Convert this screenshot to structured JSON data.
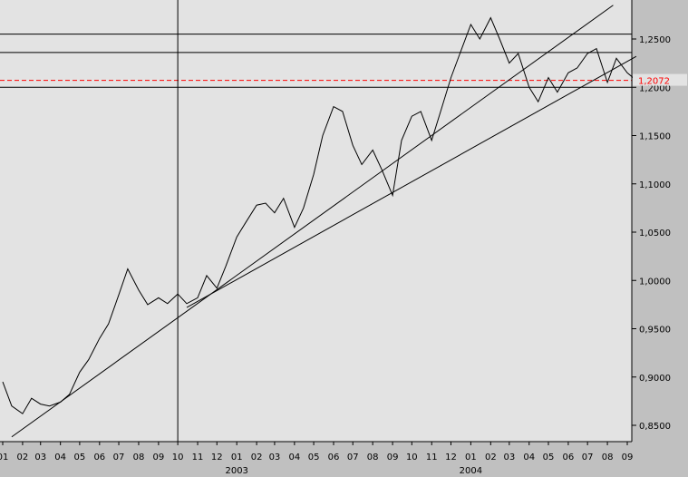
{
  "chart_data": {
    "type": "line",
    "title": "",
    "xlabel": "",
    "ylabel": "",
    "x_range": [
      "2002-01-01",
      "2004-09-15"
    ],
    "ylim": [
      0.835,
      1.285
    ],
    "y_ticks": [
      "0,8500",
      "0,9000",
      "0,9500",
      "1,0000",
      "1,0500",
      "1,1000",
      "1,1500",
      "1,2000",
      "1,2500"
    ],
    "y_tick_values": [
      0.85,
      0.9,
      0.95,
      1.0,
      1.05,
      1.1,
      1.15,
      1.2,
      1.25
    ],
    "x_month_ticks": [
      "01",
      "02",
      "03",
      "04",
      "05",
      "06",
      "07",
      "08",
      "09",
      "10",
      "11",
      "12",
      "01",
      "02",
      "03",
      "04",
      "05",
      "06",
      "07",
      "08",
      "09",
      "10",
      "11",
      "12",
      "01",
      "02",
      "03",
      "04",
      "05",
      "06",
      "07",
      "08",
      "09"
    ],
    "x_month_dates": [
      "2002-01-01",
      "2002-02-01",
      "2002-03-01",
      "2002-04-01",
      "2002-05-01",
      "2002-06-01",
      "2002-07-01",
      "2002-08-01",
      "2002-09-01",
      "2002-10-01",
      "2002-11-01",
      "2002-12-01",
      "2003-01-01",
      "2003-02-01",
      "2003-03-01",
      "2003-04-01",
      "2003-05-01",
      "2003-06-01",
      "2003-07-01",
      "2003-08-01",
      "2003-09-01",
      "2003-10-01",
      "2003-11-01",
      "2003-12-01",
      "2004-01-01",
      "2004-02-01",
      "2004-03-01",
      "2004-04-01",
      "2004-05-01",
      "2004-06-01",
      "2004-07-01",
      "2004-08-01",
      "2004-09-01"
    ],
    "x_year_labels": [
      {
        "label": "02",
        "date": "2002-01-01"
      },
      {
        "label": "2003",
        "date": "2003-01-01"
      },
      {
        "label": "2004",
        "date": "2004-01-01"
      }
    ],
    "series": [
      {
        "x": [
          "2002-01-01",
          "2002-01-15",
          "2002-02-01",
          "2002-02-15",
          "2002-03-01",
          "2002-03-15",
          "2002-04-01",
          "2002-04-15",
          "2002-05-01",
          "2002-05-15",
          "2002-06-01",
          "2002-06-15",
          "2002-07-01",
          "2002-07-15",
          "2002-08-01",
          "2002-08-15",
          "2002-09-01",
          "2002-09-15",
          "2002-10-01",
          "2002-10-15",
          "2002-11-01",
          "2002-11-15",
          "2002-12-01",
          "2002-12-15",
          "2003-01-01",
          "2003-01-15",
          "2003-02-01",
          "2003-02-15",
          "2003-03-01",
          "2003-03-15",
          "2003-04-01",
          "2003-04-15",
          "2003-05-01",
          "2003-05-15",
          "2003-06-01",
          "2003-06-15",
          "2003-07-01",
          "2003-07-15",
          "2003-08-01",
          "2003-08-15",
          "2003-09-01",
          "2003-09-15",
          "2003-10-01",
          "2003-10-15",
          "2003-11-01",
          "2003-11-15",
          "2003-12-01",
          "2003-12-15",
          "2004-01-01",
          "2004-01-15",
          "2004-02-01",
          "2004-02-15",
          "2004-03-01",
          "2004-03-15",
          "2004-04-01",
          "2004-04-15",
          "2004-05-01",
          "2004-05-15",
          "2004-06-01",
          "2004-06-15",
          "2004-07-01",
          "2004-07-15",
          "2004-08-01",
          "2004-08-15",
          "2004-09-01",
          "2004-09-10"
        ],
        "values": [
          0.895,
          0.87,
          0.862,
          0.878,
          0.872,
          0.87,
          0.874,
          0.882,
          0.905,
          0.918,
          0.94,
          0.955,
          0.985,
          1.012,
          0.99,
          0.975,
          0.982,
          0.976,
          0.986,
          0.976,
          0.982,
          1.005,
          0.992,
          1.015,
          1.045,
          1.06,
          1.078,
          1.08,
          1.07,
          1.085,
          1.055,
          1.075,
          1.11,
          1.15,
          1.18,
          1.175,
          1.14,
          1.12,
          1.135,
          1.115,
          1.088,
          1.145,
          1.17,
          1.175,
          1.145,
          1.175,
          1.21,
          1.235,
          1.265,
          1.25,
          1.272,
          1.25,
          1.225,
          1.235,
          1.2,
          1.185,
          1.21,
          1.195,
          1.215,
          1.22,
          1.235,
          1.24,
          1.205,
          1.23,
          1.215,
          1.21
        ]
      }
    ],
    "horizontal_lines": [
      1.255,
      1.236,
      1.2,
      1.2072
    ],
    "current_price_label": "1,2072",
    "current_price": 1.2072,
    "vertical_line_date": "2002-10-01",
    "trend_lines": [
      {
        "from": [
          "2002-01-15",
          0.838
        ],
        "to": [
          "2004-08-10",
          1.285
        ]
      },
      {
        "from": [
          "2002-10-15",
          0.972
        ],
        "to": [
          "2004-09-15",
          1.232
        ]
      }
    ],
    "grid": false,
    "accent_color": "#ff0000",
    "plot_background": "#e3e3e3",
    "axis_background": "#c0c0c0"
  }
}
